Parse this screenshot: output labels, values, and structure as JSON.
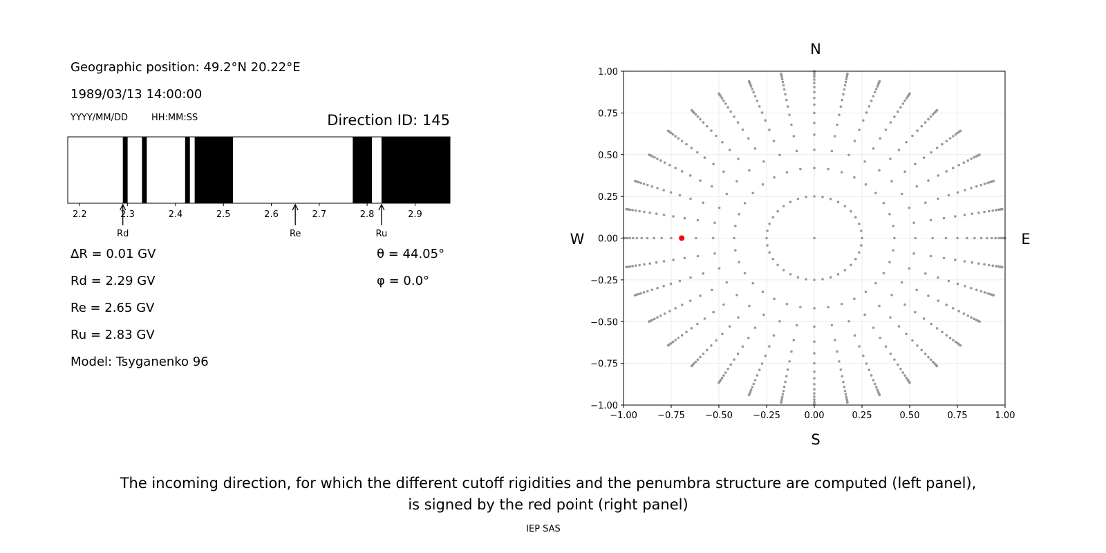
{
  "info": {
    "position": "Geographic position: 49.2°N 20.22°E",
    "datetime": "1989/03/13 14:00:00",
    "date_format": "YYYY/MM/DD",
    "time_format": "HH:MM:SS",
    "direction_id": "Direction ID: 145",
    "delta_r": "ΔR = 0.01 GV",
    "rd": "Rd = 2.29 GV",
    "re": "Re = 2.65 GV",
    "ru": "Ru = 2.83 GV",
    "model": "Model: Tsyganenko 96",
    "theta": "θ = 44.05°",
    "phi": "φ = 0.0°"
  },
  "caption": {
    "line1": "The incoming direction, for which the different cutoff rigidities and the penumbra structure are computed (left panel),",
    "line2": "is signed by the red point (right panel)",
    "credit": "IEP SAS"
  },
  "chart_data": [
    {
      "type": "bar",
      "name": "penumbra",
      "xlim": [
        2.175,
        2.973
      ],
      "xticks": [
        "2.2",
        "2.3",
        "2.4",
        "2.5",
        "2.6",
        "2.7",
        "2.8",
        "2.9"
      ],
      "forbidden_bands": [
        [
          2.29,
          2.3
        ],
        [
          2.33,
          2.34
        ],
        [
          2.42,
          2.43
        ],
        [
          2.44,
          2.52
        ],
        [
          2.77,
          2.81
        ],
        [
          2.83,
          2.973
        ]
      ],
      "band_color": "#000000",
      "markers": [
        {
          "label": "Rd",
          "value": 2.29
        },
        {
          "label": "Re",
          "value": 2.65
        },
        {
          "label": "Ru",
          "value": 2.83
        }
      ]
    },
    {
      "type": "scatter",
      "xlim": [
        -1.0,
        1.0
      ],
      "ylim": [
        -1.0,
        1.0
      ],
      "grid": true,
      "xticks": [
        "−1.00",
        "−0.75",
        "−0.50",
        "−0.25",
        "0.00",
        "0.25",
        "0.50",
        "0.75",
        "1.00"
      ],
      "yticks": [
        "−1.00",
        "−0.75",
        "−0.50",
        "−0.25",
        "0.00",
        "0.25",
        "0.50",
        "0.75",
        "1.00"
      ],
      "compass": {
        "n": "N",
        "s": "S",
        "w": "W",
        "e": "E"
      },
      "grid_azimuths_deg_step": 10,
      "grid_radii": [
        0.25,
        0.42,
        0.53,
        0.62,
        0.69,
        0.75,
        0.8,
        0.84,
        0.875,
        0.905,
        0.93,
        0.95,
        0.967,
        0.98,
        0.99,
        0.997,
        1.0
      ],
      "center_point": [
        0,
        0
      ],
      "point_color": "#999999",
      "selected_point": {
        "x": -0.695,
        "y": 0.0,
        "color": "#ff0000"
      }
    }
  ]
}
